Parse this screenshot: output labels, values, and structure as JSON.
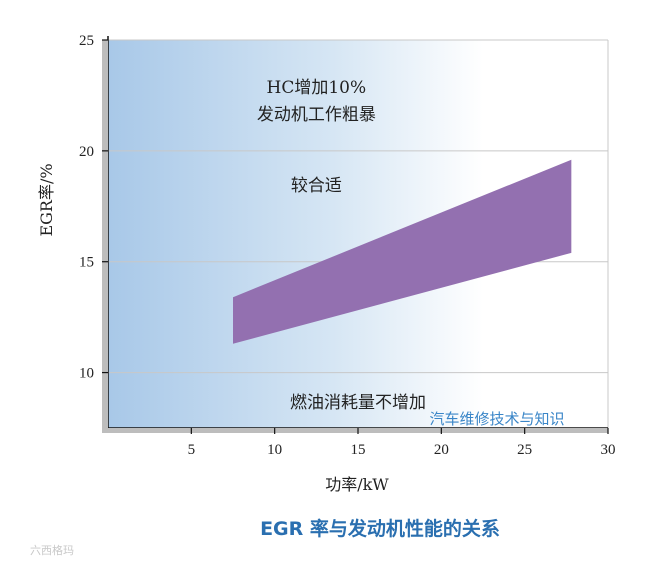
{
  "chart_data": {
    "type": "area",
    "title": "",
    "caption": "EGR 率与发动机性能的关系",
    "xlabel": "功率/kW",
    "ylabel": "EGR率/%",
    "xlim": [
      0,
      30
    ],
    "ylim": [
      7.5,
      25
    ],
    "x_ticks": [
      5,
      10,
      15,
      20,
      25,
      30
    ],
    "y_ticks": [
      10,
      15,
      20,
      25
    ],
    "grid": true,
    "band": {
      "x": [
        7.5,
        27.8
      ],
      "upper": [
        13.4,
        19.6
      ],
      "lower": [
        11.3,
        15.4
      ],
      "color": "#9370b0"
    },
    "annotations": [
      {
        "text": "HC增加10%",
        "x": 12.5,
        "y": 22.6
      },
      {
        "text": "发动机工作粗暴",
        "x": 12.5,
        "y": 21.4
      },
      {
        "text": "较合适",
        "x": 12.5,
        "y": 18.2
      },
      {
        "text": "燃油消耗量不增加",
        "x": 15.0,
        "y": 8.4
      }
    ],
    "watermark": "汽车维修技术与知识",
    "brand": "六西格玛",
    "background_gradient": [
      "#a8c8e8",
      "#ffffff"
    ]
  }
}
